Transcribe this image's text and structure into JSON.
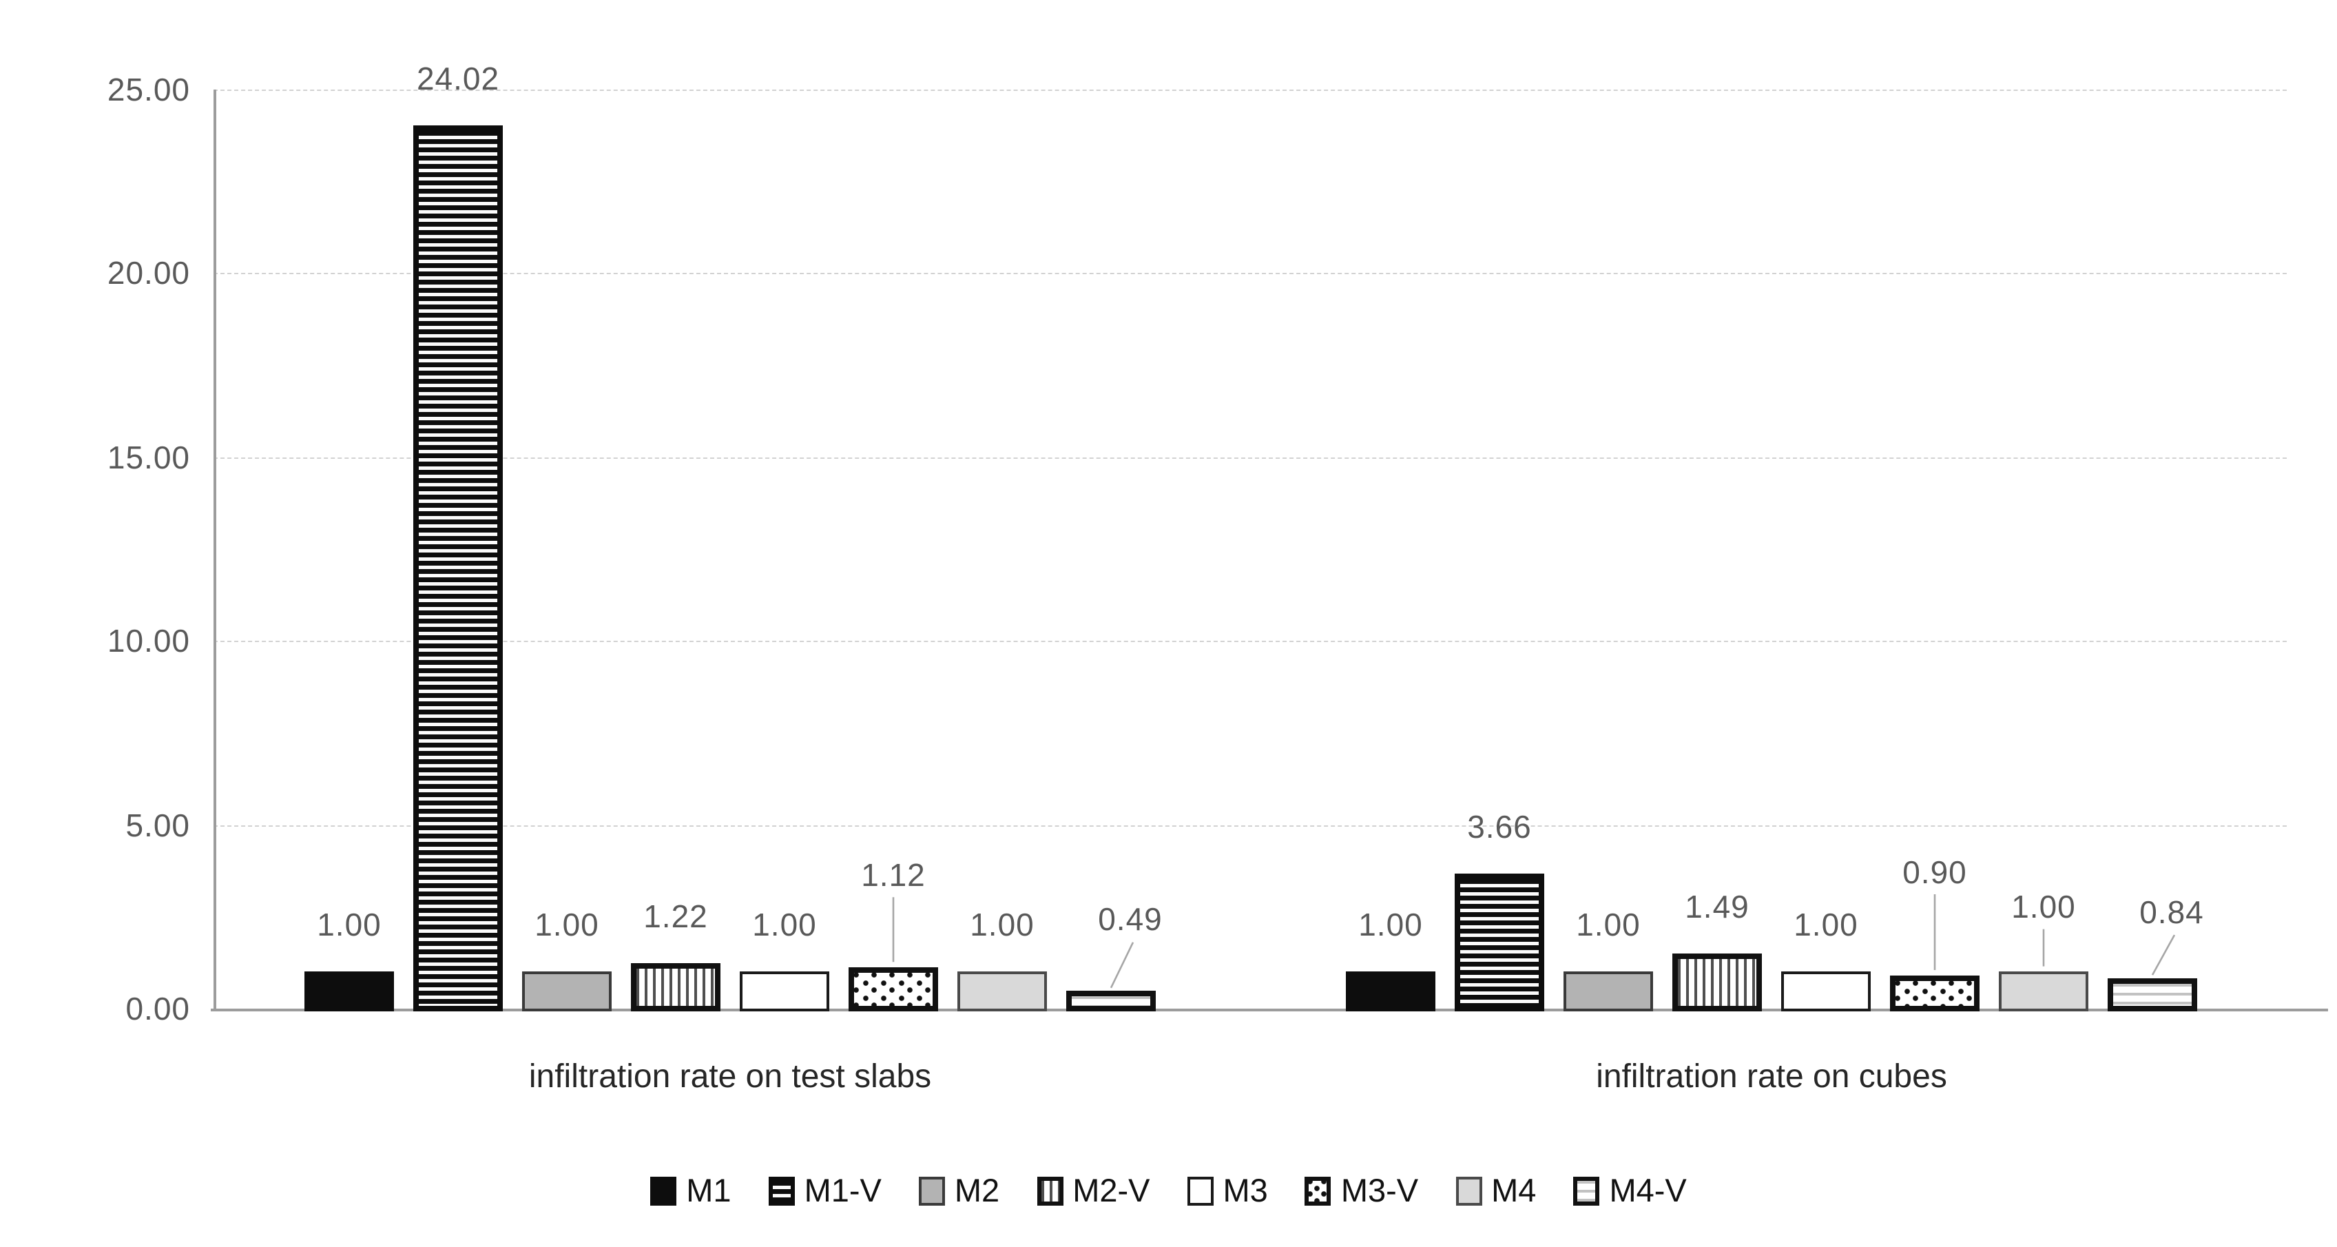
{
  "chart_data": {
    "type": "bar",
    "title": "",
    "categories": [
      "infiltration rate on test slabs",
      "infiltration rate on cubes"
    ],
    "series": [
      {
        "name": "M1",
        "pattern": "solid-black",
        "values": [
          1.0,
          1.0
        ],
        "labels": [
          "1.00",
          "1.00"
        ]
      },
      {
        "name": "M1-V",
        "pattern": "black-horizontal-stripes",
        "values": [
          24.02,
          3.66
        ],
        "labels": [
          "24.02",
          "3.66"
        ]
      },
      {
        "name": "M2",
        "pattern": "solid-gray",
        "values": [
          1.0,
          1.0
        ],
        "labels": [
          "1.00",
          "1.00"
        ]
      },
      {
        "name": "M2-V",
        "pattern": "vertical-stripes",
        "values": [
          1.22,
          1.49
        ],
        "labels": [
          "1.22",
          "1.49"
        ]
      },
      {
        "name": "M3",
        "pattern": "solid-white",
        "values": [
          1.0,
          1.0
        ],
        "labels": [
          "1.00",
          "1.00"
        ]
      },
      {
        "name": "M3-V",
        "pattern": "black-dots",
        "values": [
          1.12,
          0.9
        ],
        "labels": [
          "1.12",
          "0.90"
        ]
      },
      {
        "name": "M4",
        "pattern": "solid-light-gray",
        "values": [
          1.0,
          1.0
        ],
        "labels": [
          "1.00",
          "1.00"
        ]
      },
      {
        "name": "M4-V",
        "pattern": "light-horizontal-stripes",
        "values": [
          0.49,
          0.84
        ],
        "labels": [
          "0.49",
          "0.84"
        ]
      }
    ],
    "y_axis": {
      "ticks": [
        "0.00",
        "5.00",
        "10.00",
        "15.00",
        "20.00",
        "25.00"
      ],
      "tick_values": [
        0,
        5,
        10,
        15,
        20,
        25
      ],
      "range": [
        0,
        25
      ],
      "gridlines": "dashed"
    },
    "legend": {
      "position": "bottom",
      "entries": [
        "M1",
        "M1-V",
        "M2",
        "M2-V",
        "M3",
        "M3-V",
        "M4",
        "M4-V"
      ]
    },
    "colors": {
      "background": "#ffffff",
      "axis_line": "#9c9c9c",
      "gridline": "#d2d2d2",
      "tick_label": "#595959",
      "data_label": "#595959",
      "category_label": "#262626",
      "legend_label": "#111111",
      "bar_black": "#0d0d0d",
      "bar_gray": "#b3b3b3",
      "bar_light_gray": "#d9d9d9",
      "leader_line": "#a6a6a6"
    }
  }
}
